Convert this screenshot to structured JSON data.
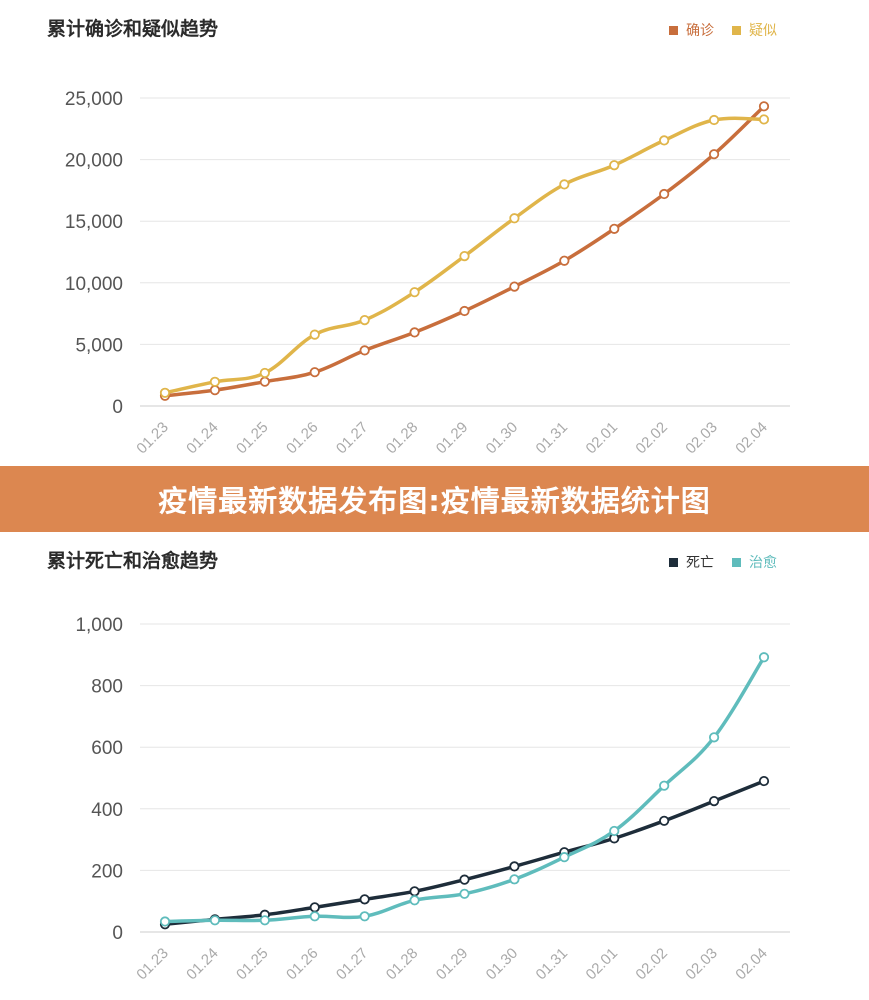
{
  "banner": {
    "text": "疫情最新数据发布图:疫情最新数据统计图"
  },
  "chart_data": [
    {
      "type": "line",
      "title": "累计确诊和疑似趋势",
      "xlabel": "",
      "ylabel": "",
      "categories": [
        "01.23",
        "01.24",
        "01.25",
        "01.26",
        "01.27",
        "01.28",
        "01.29",
        "01.30",
        "01.31",
        "02.01",
        "02.02",
        "02.03",
        "02.04"
      ],
      "ylim": [
        0,
        25000
      ],
      "yticks": [
        0,
        5000,
        10000,
        15000,
        20000,
        25000
      ],
      "ytick_labels": [
        "0",
        "5,000",
        "10,000",
        "15,000",
        "20,000",
        "25,000"
      ],
      "grid": true,
      "legend_position": "top-right",
      "series": [
        {
          "name": "确诊",
          "color": "#c86e3c",
          "values": [
            830,
            1287,
            1975,
            2744,
            4515,
            5974,
            7711,
            9692,
            11791,
            14380,
            17205,
            20438,
            24324
          ]
        },
        {
          "name": "疑似",
          "color": "#e0b54a",
          "values": [
            1072,
            1965,
            2684,
            5794,
            6973,
            9239,
            12167,
            15238,
            17988,
            19544,
            21558,
            23214,
            23260
          ]
        }
      ]
    },
    {
      "type": "line",
      "title": "累计死亡和治愈趋势",
      "xlabel": "",
      "ylabel": "",
      "categories": [
        "01.23",
        "01.24",
        "01.25",
        "01.26",
        "01.27",
        "01.28",
        "01.29",
        "01.30",
        "01.31",
        "02.01",
        "02.02",
        "02.03",
        "02.04"
      ],
      "ylim": [
        0,
        1000
      ],
      "yticks": [
        0,
        200,
        400,
        600,
        800,
        1000
      ],
      "ytick_labels": [
        "0",
        "200",
        "400",
        "600",
        "800",
        "1,000"
      ],
      "grid": true,
      "legend_position": "top-right",
      "series": [
        {
          "name": "死亡",
          "color": "#1e2d3a",
          "values": [
            25,
            41,
            56,
            80,
            106,
            132,
            170,
            213,
            259,
            304,
            361,
            425,
            490
          ]
        },
        {
          "name": "治愈",
          "color": "#5fbcbc",
          "values": [
            34,
            38,
            38,
            51,
            51,
            103,
            124,
            171,
            243,
            328,
            475,
            632,
            892
          ]
        }
      ]
    }
  ]
}
